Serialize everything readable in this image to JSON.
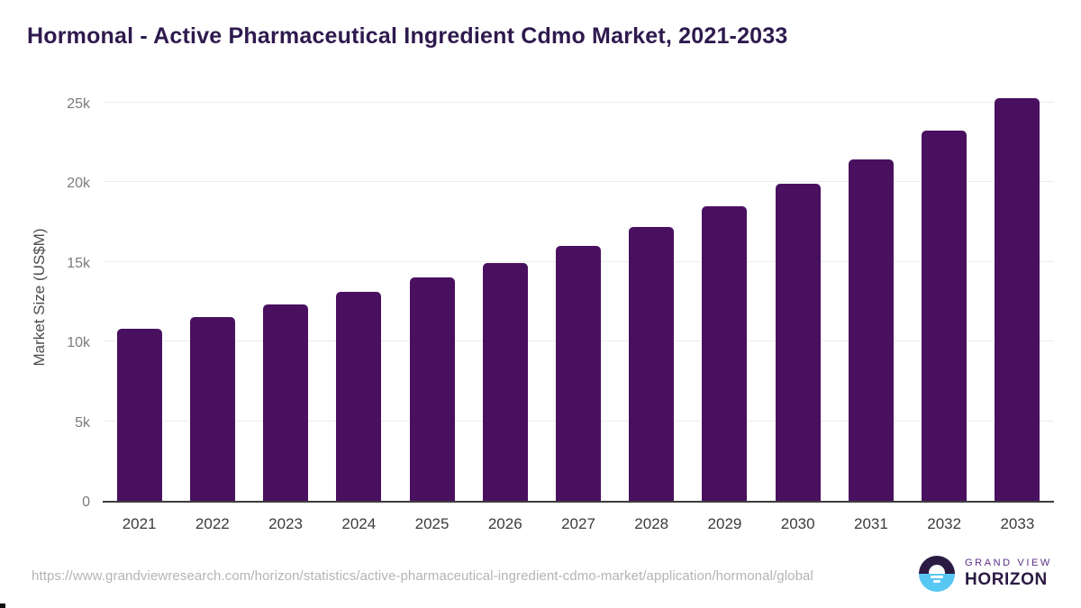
{
  "chart_data": {
    "type": "bar",
    "title": "Hormonal - Active Pharmaceutical Ingredient Cdmo Market, 2021-2033",
    "xlabel": "",
    "ylabel": "Market Size (US$M)",
    "categories": [
      "2021",
      "2022",
      "2023",
      "2024",
      "2025",
      "2026",
      "2027",
      "2028",
      "2029",
      "2030",
      "2031",
      "2032",
      "2033"
    ],
    "values": [
      10800,
      11500,
      12300,
      13100,
      14000,
      14900,
      16000,
      17200,
      18450,
      19900,
      21400,
      23250,
      25250
    ],
    "ylim": [
      0,
      26440
    ],
    "yticks": [
      {
        "label": "0",
        "value": 0
      },
      {
        "label": "5k",
        "value": 5000
      },
      {
        "label": "10k",
        "value": 10000
      },
      {
        "label": "15k",
        "value": 15000
      },
      {
        "label": "20k",
        "value": 20000
      },
      {
        "label": "25k",
        "value": 25000
      }
    ],
    "grid": "horizontal-light-gray",
    "legend": "none",
    "bar_color": "#4a1060"
  },
  "footer": {
    "source_url": "https://www.grandviewresearch.com/horizon/statistics/active-pharmaceutical-ingredient-cdmo-market/application/hormonal/global",
    "logo": {
      "brand": "GRAND VIEW",
      "product": "HORIZON",
      "icon": "sun-over-horizon-circle",
      "colors": {
        "dark_purple": "#2b1a43",
        "light_blue": "#57c7f3",
        "brand_purple": "#5b2d87"
      }
    }
  },
  "colors": {
    "title_text": "#2e1a4e",
    "axis_label_text": "#4d4d4d",
    "y_tick_text": "#7b7b7b",
    "x_tick_text": "#3c3c3c",
    "gridline": "#ececec",
    "baseline": "#3c3c3c",
    "url_text": "#b4b4b4",
    "background": "#ffffff"
  }
}
